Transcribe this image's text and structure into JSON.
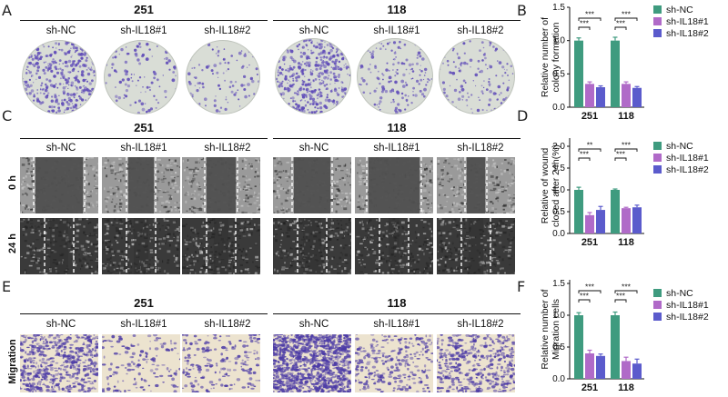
{
  "panel_labels": {
    "A": "A",
    "B": "B",
    "C": "C",
    "D": "D",
    "E": "E",
    "F": "F"
  },
  "groups": [
    "251",
    "118"
  ],
  "conditions": [
    "sh-NC",
    "sh-IL18#1",
    "sh-IL18#2"
  ],
  "row_labels": {
    "h0": "0 h",
    "h24": "24 h",
    "migration": "Migration"
  },
  "colors": {
    "sh-NC": "#3f9b7f",
    "sh-IL18#1": "#b06ac8",
    "sh-IL18#2": "#5b5bcc",
    "crystal": "#5f4bb8",
    "wound": "#5a5a5a"
  },
  "chart_data": [
    {
      "type": "bar",
      "panel": "B",
      "categories": [
        "251",
        "118"
      ],
      "series": [
        {
          "name": "sh-NC",
          "values": [
            1.0,
            1.0
          ],
          "errors": [
            0.04,
            0.05
          ]
        },
        {
          "name": "sh-IL18#1",
          "values": [
            0.35,
            0.35
          ],
          "errors": [
            0.03,
            0.03
          ]
        },
        {
          "name": "sh-IL18#2",
          "values": [
            0.3,
            0.29
          ],
          "errors": [
            0.02,
            0.02
          ]
        }
      ],
      "ylabel": "Relative number of colony formation",
      "yticks": [
        "0.0",
        "0.5",
        "1.0",
        "1.5"
      ],
      "ylim": [
        0,
        1.5
      ],
      "significance": [
        {
          "cat": 0,
          "pair": [
            0,
            1
          ],
          "label": "***"
        },
        {
          "cat": 0,
          "pair": [
            0,
            2
          ],
          "label": "***"
        },
        {
          "cat": 1,
          "pair": [
            0,
            1
          ],
          "label": "***"
        },
        {
          "cat": 1,
          "pair": [
            0,
            2
          ],
          "label": "***"
        }
      ]
    },
    {
      "type": "bar",
      "panel": "D",
      "categories": [
        "251",
        "118"
      ],
      "series": [
        {
          "name": "sh-NC",
          "values": [
            1.0,
            1.0
          ],
          "errors": [
            0.06,
            0.02
          ]
        },
        {
          "name": "sh-IL18#1",
          "values": [
            0.42,
            0.58
          ],
          "errors": [
            0.06,
            0.02
          ]
        },
        {
          "name": "sh-IL18#2",
          "values": [
            0.54,
            0.6
          ],
          "errors": [
            0.08,
            0.05
          ]
        }
      ],
      "ylabel": "Relative of wound closed after 24h(%)",
      "yticks": [
        "0.0",
        "0.5",
        "1.0",
        "1.5",
        "2.0"
      ],
      "ylim": [
        0,
        2.0
      ],
      "significance": [
        {
          "cat": 0,
          "pair": [
            0,
            1
          ],
          "label": "***"
        },
        {
          "cat": 0,
          "pair": [
            0,
            2
          ],
          "label": "**"
        },
        {
          "cat": 1,
          "pair": [
            0,
            1
          ],
          "label": "***"
        },
        {
          "cat": 1,
          "pair": [
            0,
            2
          ],
          "label": "***"
        }
      ]
    },
    {
      "type": "bar",
      "panel": "F",
      "categories": [
        "251",
        "118"
      ],
      "series": [
        {
          "name": "sh-NC",
          "values": [
            1.0,
            1.0
          ],
          "errors": [
            0.04,
            0.05
          ]
        },
        {
          "name": "sh-IL18#1",
          "values": [
            0.4,
            0.28
          ],
          "errors": [
            0.05,
            0.06
          ]
        },
        {
          "name": "sh-IL18#2",
          "values": [
            0.36,
            0.24
          ],
          "errors": [
            0.03,
            0.07
          ]
        }
      ],
      "ylabel": "Relative number of Migration cells",
      "yticks": [
        "0.0",
        "0.5",
        "1.0",
        "1.5"
      ],
      "ylim": [
        0,
        1.5
      ],
      "significance": [
        {
          "cat": 0,
          "pair": [
            0,
            1
          ],
          "label": "***"
        },
        {
          "cat": 0,
          "pair": [
            0,
            2
          ],
          "label": "***"
        },
        {
          "cat": 1,
          "pair": [
            0,
            1
          ],
          "label": "***"
        },
        {
          "cat": 1,
          "pair": [
            0,
            2
          ],
          "label": "***"
        }
      ]
    }
  ]
}
